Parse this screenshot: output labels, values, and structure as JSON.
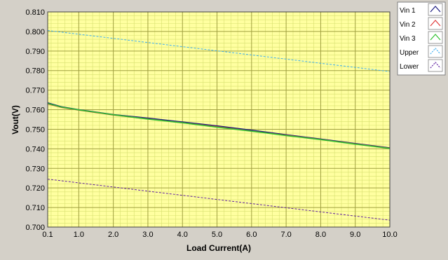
{
  "colors": {
    "panel": "#d4d0c8",
    "plot_bg": "#ffffa0",
    "major_grid": "#a0a040",
    "minor_grid": "#d8e070",
    "vin1": "#1a1a80",
    "vin2": "#e03a3a",
    "vin3": "#30c030",
    "upper": "#40b0f0",
    "lower": "#6020a0"
  },
  "chart_data": {
    "type": "line",
    "xlabel": "Load Current(A)",
    "ylabel": "Vout(V)",
    "xlim": [
      0.1,
      10.0
    ],
    "ylim": [
      0.7,
      0.81
    ],
    "x_ticks": [
      "0.1",
      "1.0",
      "2.0",
      "3.0",
      "4.0",
      "5.0",
      "6.0",
      "7.0",
      "8.0",
      "9.0",
      "10.0"
    ],
    "x_tick_values": [
      0.1,
      1,
      2,
      3,
      4,
      5,
      6,
      7,
      8,
      9,
      10
    ],
    "y_ticks": [
      "0.700",
      "0.710",
      "0.720",
      "0.730",
      "0.740",
      "0.750",
      "0.760",
      "0.770",
      "0.780",
      "0.790",
      "0.800",
      "0.810"
    ],
    "y_tick_values": [
      0.7,
      0.71,
      0.72,
      0.73,
      0.74,
      0.75,
      0.76,
      0.77,
      0.78,
      0.79,
      0.8,
      0.81
    ],
    "grid": true,
    "legend_position": "top-right",
    "series": [
      {
        "name": "Vin 1",
        "style": "solid",
        "color": "#1a1a80",
        "x": [
          0.1,
          0.5,
          1,
          2,
          3,
          4,
          5,
          6,
          7,
          8,
          9,
          10
        ],
        "y": [
          0.7635,
          0.7615,
          0.76,
          0.7575,
          0.7557,
          0.7537,
          0.7517,
          0.7495,
          0.7472,
          0.745,
          0.7427,
          0.7405
        ]
      },
      {
        "name": "Vin 2",
        "style": "solid",
        "color": "#e03a3a",
        "x": [
          0.1,
          0.5,
          1,
          2,
          3,
          4,
          5,
          6,
          7,
          8,
          9,
          10
        ],
        "y": [
          0.763,
          0.7612,
          0.7598,
          0.7573,
          0.7553,
          0.7533,
          0.7513,
          0.7491,
          0.7469,
          0.7448,
          0.7425,
          0.7403
        ]
      },
      {
        "name": "Vin 3",
        "style": "solid",
        "color": "#30c030",
        "x": [
          0.1,
          0.5,
          1,
          2,
          3,
          4,
          5,
          6,
          7,
          8,
          9,
          10
        ],
        "y": [
          0.7632,
          0.7613,
          0.7599,
          0.7574,
          0.7552,
          0.7533,
          0.7511,
          0.749,
          0.7468,
          0.7447,
          0.7424,
          0.7402
        ]
      },
      {
        "name": "Upper",
        "style": "dashed",
        "color": "#40b0f0",
        "x": [
          0.1,
          10
        ],
        "y": [
          0.8005,
          0.7795
        ]
      },
      {
        "name": "Lower",
        "style": "dashed",
        "color": "#6020a0",
        "x": [
          0.1,
          10
        ],
        "y": [
          0.7245,
          0.7035
        ]
      }
    ]
  }
}
